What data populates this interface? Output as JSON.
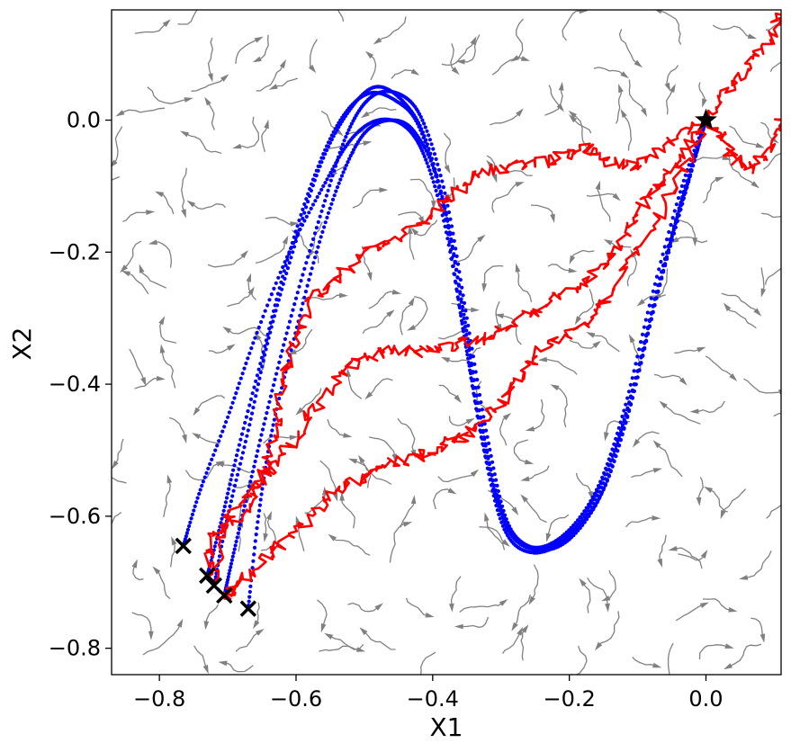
{
  "chart_data": {
    "type": "scatter",
    "xlabel": "X1",
    "ylabel": "X2",
    "xlim": [
      -0.87,
      0.11
    ],
    "ylim": [
      -0.84,
      0.167
    ],
    "xticks": [
      {
        "value": -0.8,
        "label": "−0.8"
      },
      {
        "value": -0.6,
        "label": "−0.6"
      },
      {
        "value": -0.4,
        "label": "−0.4"
      },
      {
        "value": -0.2,
        "label": "−0.2"
      },
      {
        "value": 0.0,
        "label": "0.0"
      }
    ],
    "yticks": [
      {
        "value": 0.0,
        "label": "0.0"
      },
      {
        "value": -0.2,
        "label": "−0.2"
      },
      {
        "value": -0.4,
        "label": "−0.4"
      },
      {
        "value": -0.6,
        "label": "−0.6"
      },
      {
        "value": -0.8,
        "label": "−0.8"
      }
    ],
    "grid": false,
    "colors": {
      "flow_field": "#808080",
      "smooth_trajectories": "#0000ff",
      "noisy_trajectories": "#ff0000",
      "markers": "#000000"
    },
    "start_marker": {
      "symbol": "star",
      "x": 0.0,
      "y": 0.0
    },
    "end_markers": {
      "symbol": "x",
      "points": [
        {
          "x": -0.765,
          "y": -0.645
        },
        {
          "x": -0.73,
          "y": -0.69
        },
        {
          "x": -0.72,
          "y": -0.705
        },
        {
          "x": -0.705,
          "y": -0.72
        },
        {
          "x": -0.67,
          "y": -0.74
        }
      ]
    },
    "smooth_trajectories": [
      {
        "points": [
          [
            0.0,
            0.0
          ],
          [
            -0.03,
            -0.1
          ],
          [
            -0.07,
            -0.25
          ],
          [
            -0.11,
            -0.42
          ],
          [
            -0.15,
            -0.55
          ],
          [
            -0.2,
            -0.63
          ],
          [
            -0.25,
            -0.65
          ],
          [
            -0.29,
            -0.62
          ],
          [
            -0.32,
            -0.52
          ],
          [
            -0.35,
            -0.35
          ],
          [
            -0.38,
            -0.17
          ],
          [
            -0.41,
            -0.06
          ],
          [
            -0.44,
            -0.01
          ],
          [
            -0.48,
            0.0
          ],
          [
            -0.52,
            -0.03
          ],
          [
            -0.56,
            -0.1
          ],
          [
            -0.61,
            -0.2
          ],
          [
            -0.66,
            -0.33
          ],
          [
            -0.7,
            -0.45
          ],
          [
            -0.74,
            -0.56
          ],
          [
            -0.765,
            -0.645
          ]
        ]
      },
      {
        "points": [
          [
            0.0,
            0.0
          ],
          [
            -0.035,
            -0.12
          ],
          [
            -0.075,
            -0.28
          ],
          [
            -0.115,
            -0.45
          ],
          [
            -0.155,
            -0.57
          ],
          [
            -0.205,
            -0.635
          ],
          [
            -0.255,
            -0.655
          ],
          [
            -0.295,
            -0.62
          ],
          [
            -0.325,
            -0.5
          ],
          [
            -0.355,
            -0.32
          ],
          [
            -0.385,
            -0.13
          ],
          [
            -0.42,
            -0.01
          ],
          [
            -0.455,
            0.03
          ],
          [
            -0.495,
            0.04
          ],
          [
            -0.535,
            0.0
          ],
          [
            -0.575,
            -0.09
          ],
          [
            -0.615,
            -0.22
          ],
          [
            -0.65,
            -0.36
          ],
          [
            -0.685,
            -0.5
          ],
          [
            -0.71,
            -0.61
          ],
          [
            -0.73,
            -0.69
          ]
        ]
      },
      {
        "points": [
          [
            0.0,
            0.0
          ],
          [
            -0.025,
            -0.09
          ],
          [
            -0.065,
            -0.23
          ],
          [
            -0.105,
            -0.4
          ],
          [
            -0.145,
            -0.53
          ],
          [
            -0.195,
            -0.62
          ],
          [
            -0.245,
            -0.65
          ],
          [
            -0.285,
            -0.625
          ],
          [
            -0.315,
            -0.53
          ],
          [
            -0.345,
            -0.36
          ],
          [
            -0.375,
            -0.17
          ],
          [
            -0.41,
            -0.03
          ],
          [
            -0.445,
            0.03
          ],
          [
            -0.485,
            0.05
          ],
          [
            -0.525,
            0.01
          ],
          [
            -0.565,
            -0.07
          ],
          [
            -0.605,
            -0.2
          ],
          [
            -0.64,
            -0.33
          ],
          [
            -0.67,
            -0.47
          ],
          [
            -0.7,
            -0.6
          ],
          [
            -0.72,
            -0.705
          ]
        ]
      },
      {
        "points": [
          [
            0.0,
            0.0
          ],
          [
            -0.03,
            -0.11
          ],
          [
            -0.07,
            -0.26
          ],
          [
            -0.11,
            -0.43
          ],
          [
            -0.15,
            -0.56
          ],
          [
            -0.2,
            -0.635
          ],
          [
            -0.25,
            -0.65
          ],
          [
            -0.29,
            -0.61
          ],
          [
            -0.32,
            -0.48
          ],
          [
            -0.35,
            -0.3
          ],
          [
            -0.38,
            -0.12
          ],
          [
            -0.415,
            0.0
          ],
          [
            -0.45,
            0.04
          ],
          [
            -0.49,
            0.035
          ],
          [
            -0.525,
            -0.02
          ],
          [
            -0.56,
            -0.13
          ],
          [
            -0.6,
            -0.27
          ],
          [
            -0.635,
            -0.41
          ],
          [
            -0.665,
            -0.54
          ],
          [
            -0.69,
            -0.65
          ],
          [
            -0.705,
            -0.72
          ]
        ]
      },
      {
        "points": [
          [
            0.0,
            0.0
          ],
          [
            -0.035,
            -0.1
          ],
          [
            -0.08,
            -0.27
          ],
          [
            -0.12,
            -0.44
          ],
          [
            -0.16,
            -0.56
          ],
          [
            -0.21,
            -0.63
          ],
          [
            -0.26,
            -0.645
          ],
          [
            -0.3,
            -0.59
          ],
          [
            -0.33,
            -0.45
          ],
          [
            -0.36,
            -0.26
          ],
          [
            -0.39,
            -0.1
          ],
          [
            -0.425,
            -0.02
          ],
          [
            -0.46,
            0.0
          ],
          [
            -0.5,
            -0.02
          ],
          [
            -0.535,
            -0.09
          ],
          [
            -0.57,
            -0.2
          ],
          [
            -0.605,
            -0.34
          ],
          [
            -0.635,
            -0.47
          ],
          [
            -0.655,
            -0.6
          ],
          [
            -0.67,
            -0.74
          ]
        ]
      }
    ],
    "noisy_trajectories": [
      {
        "points": [
          [
            0.0,
            0.0
          ],
          [
            -0.05,
            -0.03
          ],
          [
            -0.1,
            -0.07
          ],
          [
            -0.15,
            -0.06
          ],
          [
            -0.18,
            -0.04
          ],
          [
            -0.22,
            -0.06
          ],
          [
            -0.28,
            -0.07
          ],
          [
            -0.33,
            -0.08
          ],
          [
            -0.37,
            -0.11
          ],
          [
            -0.4,
            -0.15
          ],
          [
            -0.45,
            -0.18
          ],
          [
            -0.5,
            -0.2
          ],
          [
            -0.54,
            -0.24
          ],
          [
            -0.58,
            -0.27
          ],
          [
            -0.6,
            -0.33
          ],
          [
            -0.62,
            -0.4
          ],
          [
            -0.63,
            -0.48
          ],
          [
            -0.65,
            -0.55
          ],
          [
            -0.68,
            -0.6
          ],
          [
            -0.72,
            -0.63
          ],
          [
            -0.73,
            -0.69
          ]
        ]
      },
      {
        "points": [
          [
            0.0,
            0.0
          ],
          [
            -0.04,
            -0.06
          ],
          [
            -0.07,
            -0.1
          ],
          [
            -0.1,
            -0.14
          ],
          [
            -0.13,
            -0.2
          ],
          [
            -0.17,
            -0.24
          ],
          [
            -0.22,
            -0.27
          ],
          [
            -0.27,
            -0.3
          ],
          [
            -0.32,
            -0.33
          ],
          [
            -0.37,
            -0.34
          ],
          [
            -0.42,
            -0.35
          ],
          [
            -0.47,
            -0.35
          ],
          [
            -0.52,
            -0.37
          ],
          [
            -0.56,
            -0.42
          ],
          [
            -0.6,
            -0.48
          ],
          [
            -0.64,
            -0.53
          ],
          [
            -0.68,
            -0.57
          ],
          [
            -0.71,
            -0.62
          ],
          [
            -0.72,
            -0.705
          ]
        ]
      },
      {
        "points": [
          [
            0.0,
            0.0
          ],
          [
            -0.04,
            -0.09
          ],
          [
            -0.09,
            -0.18
          ],
          [
            -0.14,
            -0.26
          ],
          [
            -0.18,
            -0.31
          ],
          [
            -0.23,
            -0.34
          ],
          [
            -0.27,
            -0.38
          ],
          [
            -0.3,
            -0.43
          ],
          [
            -0.34,
            -0.47
          ],
          [
            -0.38,
            -0.49
          ],
          [
            -0.42,
            -0.51
          ],
          [
            -0.46,
            -0.52
          ],
          [
            -0.5,
            -0.54
          ],
          [
            -0.54,
            -0.56
          ],
          [
            -0.58,
            -0.6
          ],
          [
            -0.62,
            -0.64
          ],
          [
            -0.66,
            -0.68
          ],
          [
            -0.69,
            -0.71
          ],
          [
            -0.705,
            -0.72
          ]
        ]
      },
      {
        "points": [
          [
            0.0,
            0.0
          ],
          [
            0.03,
            0.04
          ],
          [
            0.06,
            0.08
          ],
          [
            0.09,
            0.12
          ],
          [
            0.11,
            0.16
          ]
        ]
      },
      {
        "points": [
          [
            0.0,
            0.0
          ],
          [
            0.03,
            -0.04
          ],
          [
            0.06,
            -0.08
          ],
          [
            0.09,
            -0.05
          ],
          [
            0.11,
            0.0
          ]
        ]
      }
    ]
  }
}
